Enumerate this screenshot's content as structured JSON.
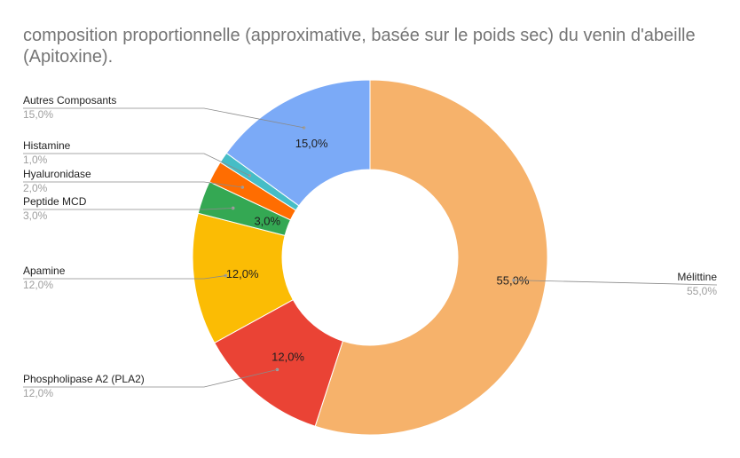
{
  "chart_data": {
    "type": "pie",
    "donut": true,
    "title_lines": [
      "composition proportionnelle (approximative, basée sur le poids sec) du venin d'abeille",
      "(Apitoxine)."
    ],
    "slices": [
      {
        "name": "Mélittine",
        "value": 55.0,
        "label": "55,0%",
        "color": "#f6b26b"
      },
      {
        "name": "Phospholipase A2 (PLA2)",
        "value": 12.0,
        "label": "12,0%",
        "color": "#ea4335"
      },
      {
        "name": "Apamine",
        "value": 12.0,
        "label": "12,0%",
        "color": "#fbbc04"
      },
      {
        "name": "Peptide MCD",
        "value": 3.0,
        "label": "3,0%",
        "color": "#34a853"
      },
      {
        "name": "Hyaluronidase",
        "value": 2.0,
        "label": "2,0%",
        "color": "#ff6d01"
      },
      {
        "name": "Histamine",
        "value": 1.0,
        "label": "1,0%",
        "color": "#46bdc6"
      },
      {
        "name": "Autres Composants",
        "value": 15.0,
        "label": "15,0%",
        "color": "#7baaf7"
      }
    ],
    "legend": "callout labels beside slices"
  }
}
